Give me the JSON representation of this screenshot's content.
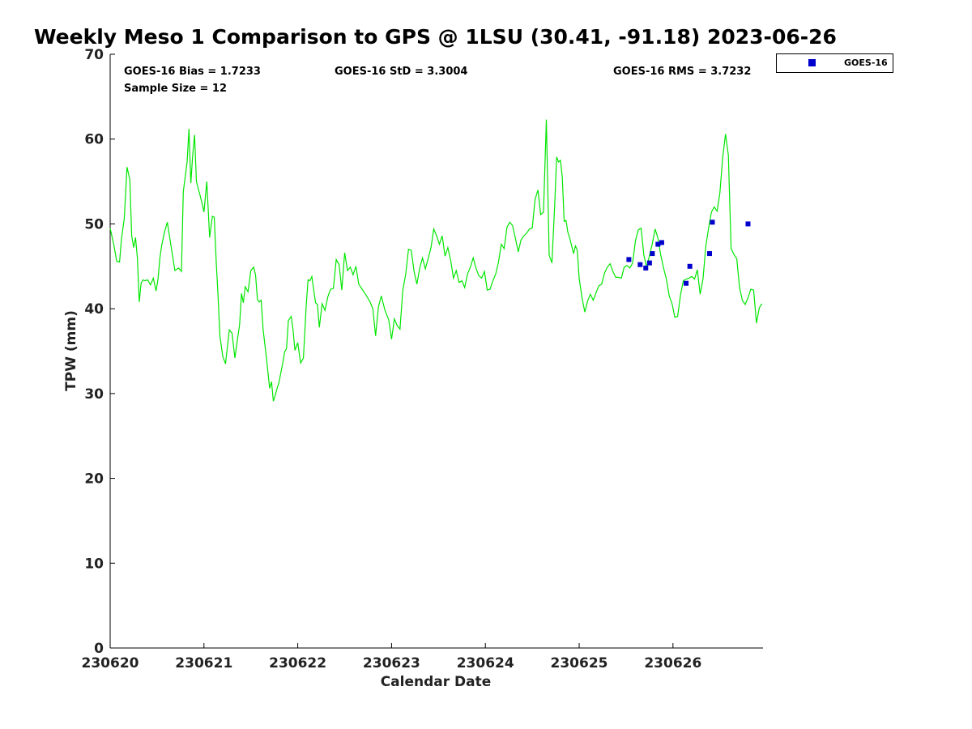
{
  "chart_data": {
    "type": "line",
    "title": "Weekly Meso 1 Comparison to GPS @ 1LSU (30.41, -91.18) 2023-06-26",
    "xlabel": "Calendar Date",
    "ylabel": "TPW (mm)",
    "xlim": [
      0,
      6.96
    ],
    "ylim": [
      0,
      70
    ],
    "x_unit": "days after 230620",
    "x_ticks": [
      0,
      1,
      2,
      3,
      4,
      5,
      6
    ],
    "x_tick_labels": [
      "230620",
      "230621",
      "230622",
      "230623",
      "230624",
      "230625",
      "230626"
    ],
    "y_ticks": [
      0,
      10,
      20,
      30,
      40,
      50,
      60,
      70
    ],
    "y_tick_labels": [
      "0",
      "10",
      "20",
      "30",
      "40",
      "50",
      "60",
      "70"
    ],
    "grid": false,
    "legend_position": "top-right-outside",
    "legend": [
      {
        "label": "GOES-16",
        "marker": "square",
        "color": "#0000cc"
      }
    ],
    "stats": {
      "bias": "GOES-16 Bias = 1.7233",
      "std": "GOES-16 StD = 3.3004",
      "rms": "GOES-16 RMS = 3.7232",
      "sample": "Sample Size = 12"
    },
    "series": [
      {
        "kind": "line",
        "color": "#00e600",
        "x": [
          0.0,
          0.04,
          0.07,
          0.1,
          0.12,
          0.15,
          0.18,
          0.21,
          0.23,
          0.25,
          0.27,
          0.29,
          0.31,
          0.33,
          0.35,
          0.37,
          0.4,
          0.43,
          0.46,
          0.49,
          0.51,
          0.53,
          0.55,
          0.58,
          0.61,
          0.65,
          0.69,
          0.73,
          0.76,
          0.78,
          0.8,
          0.82,
          0.84,
          0.86,
          0.88,
          0.9,
          0.92,
          0.94,
          0.96,
          0.98,
          1.0,
          1.03,
          1.06,
          1.09,
          1.11,
          1.13,
          1.15,
          1.17,
          1.2,
          1.23,
          1.27,
          1.3,
          1.33,
          1.36,
          1.38,
          1.4,
          1.42,
          1.44,
          1.47,
          1.5,
          1.53,
          1.55,
          1.57,
          1.59,
          1.61,
          1.63,
          1.65,
          1.67,
          1.7,
          1.72,
          1.74,
          1.76,
          1.78,
          1.8,
          1.82,
          1.84,
          1.86,
          1.88,
          1.9,
          1.93,
          1.95,
          1.97,
          2.0,
          2.03,
          2.06,
          2.09,
          2.11,
          2.13,
          2.15,
          2.17,
          2.19,
          2.21,
          2.23,
          2.26,
          2.29,
          2.32,
          2.35,
          2.38,
          2.41,
          2.44,
          2.47,
          2.5,
          2.53,
          2.56,
          2.59,
          2.62,
          2.65,
          2.68,
          2.71,
          2.74,
          2.77,
          2.8,
          2.83,
          2.86,
          2.89,
          2.93,
          2.97,
          3.0,
          3.03,
          3.06,
          3.09,
          3.12,
          3.15,
          3.18,
          3.21,
          3.24,
          3.27,
          3.3,
          3.33,
          3.36,
          3.39,
          3.42,
          3.45,
          3.48,
          3.51,
          3.54,
          3.57,
          3.6,
          3.63,
          3.66,
          3.69,
          3.72,
          3.75,
          3.78,
          3.81,
          3.84,
          3.87,
          3.9,
          3.93,
          3.96,
          3.99,
          4.02,
          4.05,
          4.08,
          4.11,
          4.14,
          4.17,
          4.2,
          4.23,
          4.26,
          4.29,
          4.32,
          4.35,
          4.38,
          4.41,
          4.44,
          4.47,
          4.5,
          4.53,
          4.56,
          4.59,
          4.62,
          4.65,
          4.68,
          4.71,
          4.74,
          4.76,
          4.78,
          4.8,
          4.82,
          4.84,
          4.86,
          4.88,
          4.9,
          4.92,
          4.94,
          4.96,
          4.98,
          5.0,
          5.03,
          5.06,
          5.09,
          5.12,
          5.15,
          5.18,
          5.21,
          5.24,
          5.27,
          5.3,
          5.33,
          5.36,
          5.39,
          5.42,
          5.45,
          5.48,
          5.51,
          5.54,
          5.57,
          5.6,
          5.63,
          5.66,
          5.69,
          5.72,
          5.75,
          5.78,
          5.81,
          5.84,
          5.87,
          5.9,
          5.93,
          5.96,
          5.99,
          6.02,
          6.05,
          6.08,
          6.11,
          6.14,
          6.17,
          6.2,
          6.23,
          6.26,
          6.29,
          6.32,
          6.35,
          6.38,
          6.41,
          6.44,
          6.47,
          6.5,
          6.53,
          6.56,
          6.59,
          6.62,
          6.65,
          6.68,
          6.71,
          6.74,
          6.77,
          6.8,
          6.83,
          6.86,
          6.89,
          6.92,
          6.95
        ],
        "y": [
          49.5,
          47.5,
          45.6,
          45.5,
          48.2,
          50.6,
          56.7,
          55.2,
          48.6,
          47.2,
          48.4,
          46.0,
          40.8,
          43.0,
          43.4,
          43.3,
          43.4,
          42.8,
          43.6,
          42.1,
          43.5,
          46.0,
          47.5,
          49.1,
          50.2,
          47.3,
          44.5,
          44.8,
          44.4,
          53.8,
          55.5,
          57.3,
          61.2,
          54.8,
          58.1,
          60.5,
          55.0,
          54.1,
          53.3,
          52.4,
          51.4,
          55.0,
          48.4,
          50.9,
          50.8,
          45.6,
          41.5,
          36.8,
          34.4,
          33.5,
          37.5,
          37.1,
          34.2,
          36.6,
          38.1,
          41.8,
          40.7,
          42.6,
          42.0,
          44.5,
          44.9,
          44.0,
          41.1,
          40.8,
          41.0,
          37.6,
          35.7,
          33.8,
          30.6,
          31.4,
          29.1,
          29.8,
          30.6,
          31.3,
          32.5,
          33.6,
          34.9,
          35.3,
          38.6,
          39.1,
          37.5,
          35.1,
          36.0,
          33.6,
          34.2,
          40.3,
          43.4,
          43.3,
          43.8,
          42.2,
          40.7,
          40.5,
          37.8,
          40.6,
          39.8,
          41.4,
          42.3,
          42.4,
          45.8,
          45.2,
          42.2,
          46.6,
          44.5,
          44.9,
          44.0,
          45.0,
          42.9,
          42.4,
          41.9,
          41.4,
          40.8,
          40.0,
          36.8,
          40.2,
          41.5,
          39.8,
          38.7,
          36.4,
          38.8,
          38.0,
          37.6,
          42.2,
          44.0,
          47.0,
          46.9,
          44.4,
          42.9,
          44.8,
          46.0,
          44.7,
          45.9,
          47.2,
          49.4,
          48.6,
          47.6,
          48.6,
          46.2,
          47.2,
          45.7,
          43.6,
          44.5,
          43.1,
          43.3,
          42.5,
          44.1,
          44.9,
          46.0,
          44.8,
          43.9,
          43.6,
          44.4,
          42.2,
          42.3,
          43.3,
          44.1,
          45.5,
          47.6,
          47.1,
          49.6,
          50.2,
          49.8,
          48.3,
          46.7,
          48.1,
          48.6,
          48.9,
          49.4,
          49.5,
          52.9,
          54.0,
          51.1,
          51.4,
          62.3,
          46.3,
          45.4,
          52.4,
          57.9,
          57.3,
          57.5,
          55.5,
          50.3,
          50.4,
          49.0,
          48.3,
          47.4,
          46.5,
          47.4,
          46.9,
          43.6,
          41.3,
          39.6,
          40.9,
          41.7,
          41.0,
          41.9,
          42.7,
          42.9,
          44.2,
          44.9,
          45.3,
          44.4,
          43.7,
          43.7,
          43.6,
          44.9,
          45.1,
          44.8,
          45.4,
          48.0,
          49.3,
          49.5,
          46.3,
          44.9,
          46.3,
          47.7,
          49.4,
          48.3,
          46.3,
          44.8,
          43.5,
          41.5,
          40.6,
          39.0,
          39.1,
          41.6,
          43.3,
          43.5,
          43.6,
          43.8,
          43.5,
          44.6,
          41.7,
          43.5,
          47.4,
          49.5,
          51.4,
          52.0,
          51.5,
          53.6,
          57.8,
          60.6,
          58.1,
          47.1,
          46.4,
          45.9,
          42.5,
          41.0,
          40.5,
          41.3,
          42.3,
          42.2,
          38.3,
          40.1,
          40.6
        ]
      },
      {
        "kind": "scatter",
        "name": "GOES-16",
        "color": "#0000cc",
        "x": [
          5.53,
          5.65,
          5.71,
          5.75,
          5.78,
          5.84,
          5.88,
          6.14,
          6.18,
          6.39,
          6.42,
          6.8
        ],
        "y": [
          45.8,
          45.2,
          44.8,
          45.4,
          46.5,
          47.6,
          47.8,
          43.0,
          45.0,
          46.5,
          50.2,
          50.0
        ]
      }
    ]
  }
}
